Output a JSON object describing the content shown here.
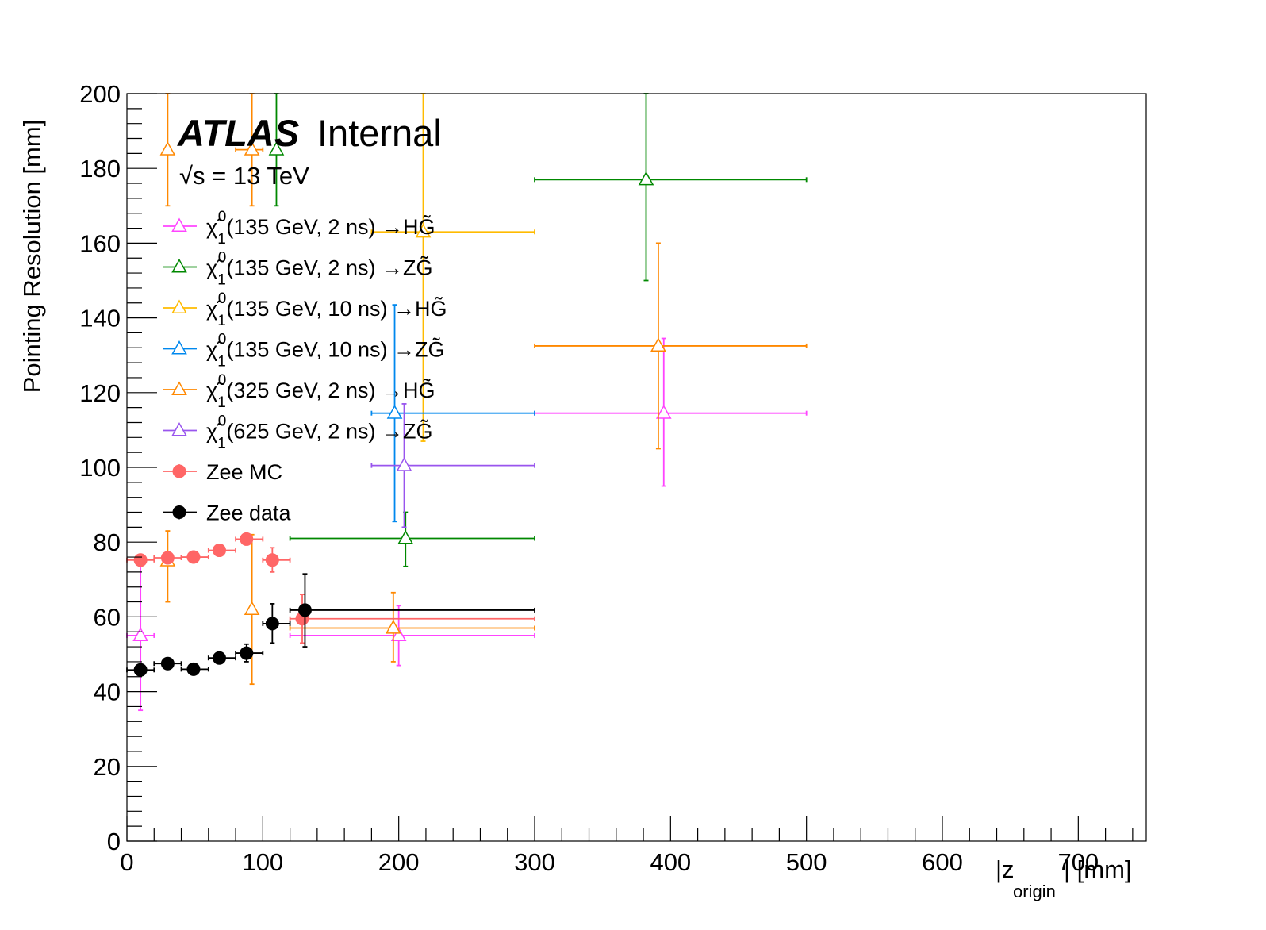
{
  "chart_data": {
    "type": "scatter",
    "xlabel": "|z_origin| [mm]",
    "xlabel_main": "|z",
    "xlabel_sub": "origin",
    "xlabel_end": "| [mm]",
    "ylabel": "Pointing Resolution [mm]",
    "xlim": [
      0,
      750
    ],
    "ylim": [
      0,
      200
    ],
    "x_ticks": [
      0,
      100,
      200,
      300,
      400,
      500,
      600,
      700
    ],
    "y_ticks": [
      0,
      20,
      40,
      60,
      80,
      100,
      120,
      140,
      160,
      180,
      200
    ],
    "grid": false,
    "legend_position": "top-left",
    "annotations": {
      "atlas": "ATLAS",
      "internal": "Internal",
      "energy": "√s = 13 TeV"
    },
    "series": [
      {
        "name": "χ̃₁⁰(135 GeV, 2 ns) →HG̃",
        "name_main": "(135 GeV, 2 ns) →HG̃",
        "color": "#ff44ff",
        "marker": "open-triangle",
        "points": [
          {
            "x": 10,
            "xlo": 0,
            "xhi": 20,
            "y": 55,
            "ylo": 35,
            "yhi": 75
          },
          {
            "x": 200,
            "xlo": 120,
            "xhi": 300,
            "y": 55,
            "ylo": 47,
            "yhi": 63
          },
          {
            "x": 395,
            "xlo": 300,
            "xhi": 500,
            "y": 114.5,
            "ylo": 95,
            "yhi": 134.5
          }
        ]
      },
      {
        "name": "χ̃₁⁰(135 GeV, 2 ns) →ZG̃",
        "name_main": "(135 GeV, 2 ns) →ZG̃",
        "color": "#008800",
        "marker": "open-triangle",
        "points": [
          {
            "x": 110,
            "xlo": 110,
            "xhi": 110,
            "y": 185,
            "ylo": 170,
            "yhi": 200
          },
          {
            "x": 205,
            "xlo": 120,
            "xhi": 300,
            "y": 81,
            "ylo": 73.5,
            "yhi": 88
          },
          {
            "x": 382,
            "xlo": 300,
            "xhi": 500,
            "y": 177,
            "ylo": 150,
            "yhi": 200
          }
        ]
      },
      {
        "name": "χ̃₁⁰(135 GeV, 10 ns) →HG̃",
        "name_main": "(135 GeV, 10 ns) →HG̃",
        "color": "#ffbb00",
        "marker": "open-triangle",
        "points": [
          {
            "x": 218,
            "xlo": 180,
            "xhi": 300,
            "y": 163,
            "ylo": 107,
            "yhi": 200
          }
        ]
      },
      {
        "name": "χ̃₁⁰(135 GeV, 10 ns) →ZG̃",
        "name_main": "(135 GeV, 10 ns) →ZG̃",
        "color": "#0088ee",
        "marker": "open-triangle",
        "points": [
          {
            "x": 197,
            "xlo": 180,
            "xhi": 300,
            "y": 114.5,
            "ylo": 85.5,
            "yhi": 143.5
          }
        ]
      },
      {
        "name": "χ̃₁⁰(325 GeV, 2 ns) →HG̃",
        "name_main": "(325 GeV, 2 ns) →HG̃",
        "color": "#ff8800",
        "marker": "open-triangle",
        "points": [
          {
            "x": 30,
            "xlo": 30,
            "xhi": 30,
            "y": 185,
            "ylo": 170,
            "yhi": 200
          },
          {
            "x": 92,
            "xlo": 80,
            "xhi": 100,
            "y": 185,
            "ylo": 170,
            "yhi": 200
          },
          {
            "x": 30,
            "xlo": 30,
            "xhi": 30,
            "y": 75,
            "ylo": 64,
            "yhi": 83
          },
          {
            "x": 92,
            "xlo": 92,
            "xhi": 92,
            "y": 62,
            "ylo": 42,
            "yhi": 82
          },
          {
            "x": 196,
            "xlo": 120,
            "xhi": 300,
            "y": 57,
            "ylo": 48,
            "yhi": 66.5
          },
          {
            "x": 391,
            "xlo": 300,
            "xhi": 500,
            "y": 132.5,
            "ylo": 105,
            "yhi": 160
          }
        ]
      },
      {
        "name": "χ̃₁⁰(625 GeV, 2 ns) →ZG̃",
        "name_main": "(625 GeV, 2 ns) →ZG̃",
        "color": "#9955ee",
        "marker": "open-triangle",
        "points": [
          {
            "x": 204,
            "xlo": 180,
            "xhi": 300,
            "y": 100.5,
            "ylo": 84,
            "yhi": 117
          }
        ]
      },
      {
        "name": "Zee MC",
        "name_main": "Zee MC",
        "color": "#ff6666",
        "marker": "filled-circle",
        "points": [
          {
            "x": 10,
            "xlo": 0,
            "xhi": 20,
            "y": 75.2,
            "ylo": 75.2,
            "yhi": 75.2
          },
          {
            "x": 30,
            "xlo": 20,
            "xhi": 40,
            "y": 75.8,
            "ylo": 75.8,
            "yhi": 75.8
          },
          {
            "x": 49,
            "xlo": 40,
            "xhi": 60,
            "y": 76,
            "ylo": 76,
            "yhi": 76
          },
          {
            "x": 68,
            "xlo": 60,
            "xhi": 80,
            "y": 77.8,
            "ylo": 77.8,
            "yhi": 77.8
          },
          {
            "x": 88,
            "xlo": 80,
            "xhi": 100,
            "y": 80.8,
            "ylo": 80.8,
            "yhi": 80.8
          },
          {
            "x": 107,
            "xlo": 100,
            "xhi": 120,
            "y": 75.2,
            "ylo": 72,
            "yhi": 78.5
          },
          {
            "x": 129,
            "xlo": 120,
            "xhi": 300,
            "y": 59.5,
            "ylo": 53,
            "yhi": 66
          }
        ]
      },
      {
        "name": "Zee data",
        "name_main": "Zee data",
        "color": "#000000",
        "marker": "filled-circle",
        "points": [
          {
            "x": 10,
            "xlo": 0,
            "xhi": 20,
            "y": 45.8,
            "ylo": 45.3,
            "yhi": 46.3
          },
          {
            "x": 30,
            "xlo": 20,
            "xhi": 40,
            "y": 47.5,
            "ylo": 47,
            "yhi": 48
          },
          {
            "x": 49,
            "xlo": 40,
            "xhi": 60,
            "y": 46,
            "ylo": 45.5,
            "yhi": 46.5
          },
          {
            "x": 68,
            "xlo": 60,
            "xhi": 80,
            "y": 49,
            "ylo": 48.5,
            "yhi": 49.5
          },
          {
            "x": 88,
            "xlo": 80,
            "xhi": 100,
            "y": 50.3,
            "ylo": 48,
            "yhi": 52.7
          },
          {
            "x": 107,
            "xlo": 100,
            "xhi": 120,
            "y": 58.2,
            "ylo": 53,
            "yhi": 63.5
          },
          {
            "x": 131,
            "xlo": 120,
            "xhi": 300,
            "y": 61.8,
            "ylo": 52,
            "yhi": 71.5
          }
        ]
      }
    ]
  }
}
